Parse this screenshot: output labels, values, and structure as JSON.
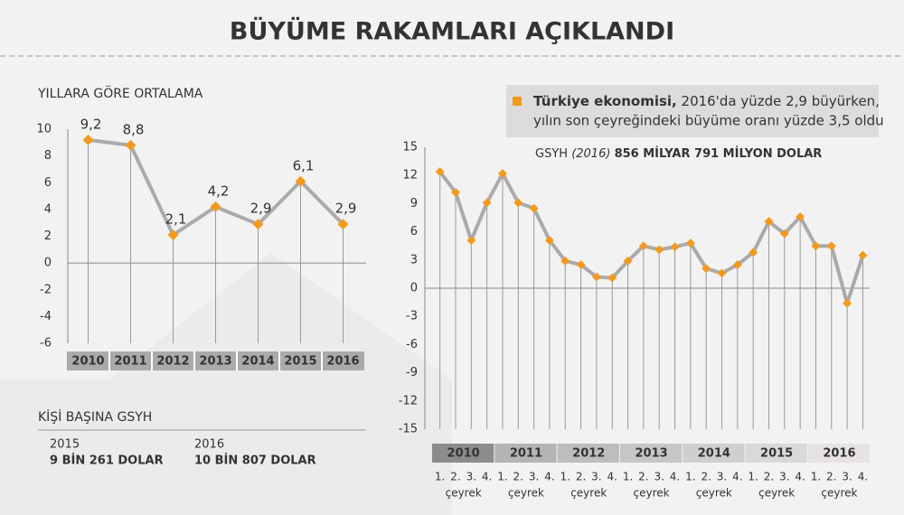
{
  "header": {
    "title": "BÜYÜME RAKAMLARI AÇIKLANDI"
  },
  "chart_data": [
    {
      "type": "line",
      "title": "YILLARA GÖRE ORTALAMA",
      "categories": [
        "2010",
        "2011",
        "2012",
        "2013",
        "2014",
        "2015",
        "2016"
      ],
      "values": [
        9.2,
        8.8,
        2.1,
        4.2,
        2.9,
        6.1,
        2.9
      ],
      "value_labels": [
        "9,2",
        "8,8",
        "2,1",
        "4,2",
        "2,9",
        "6,1",
        "2,9"
      ],
      "ylim": [
        -6,
        10
      ],
      "yticks": [
        -6,
        -4,
        -2,
        0,
        2,
        4,
        6,
        8,
        10
      ],
      "color": "#aaaaaa",
      "marker_color": "#f39a1e"
    },
    {
      "type": "line",
      "years": [
        "2010",
        "2011",
        "2012",
        "2013",
        "2014",
        "2015",
        "2016"
      ],
      "quarter_labels": [
        "1.",
        "2.",
        "3.",
        "4."
      ],
      "quarter_unit": "çeyrek",
      "values": [
        12.4,
        10.2,
        5.1,
        9.1,
        12.2,
        9.1,
        8.5,
        5.1,
        2.9,
        2.5,
        1.2,
        1.1,
        2.9,
        4.5,
        4.1,
        4.4,
        4.8,
        2.1,
        1.6,
        2.5,
        3.8,
        7.1,
        5.8,
        7.6,
        4.5,
        4.5,
        -1.6,
        3.5
      ],
      "ylim": [
        -15,
        15
      ],
      "yticks": [
        -15,
        -12,
        -9,
        -6,
        -3,
        0,
        3,
        6,
        9,
        12,
        15
      ],
      "color": "#aaaaaa",
      "marker_color": "#f39a1e"
    }
  ],
  "note": {
    "bold": "Türkiye ekonomisi,",
    "line1": "2016'da yüzde 2,9 büyürken,",
    "line2": "yılın son çeyreğindeki büyüme oranı yüzde 3,5 oldu"
  },
  "gdp": {
    "label": "GSYH",
    "year": "(2016)",
    "value": "856 MİLYAR 791 MİLYON DOLAR"
  },
  "per_capita": {
    "title": "KİŞİ BAŞINA GSYH",
    "items": [
      {
        "year": "2015",
        "value": "9 BİN 261 DOLAR"
      },
      {
        "year": "2016",
        "value": "10 BİN 807 DOLAR"
      }
    ]
  }
}
